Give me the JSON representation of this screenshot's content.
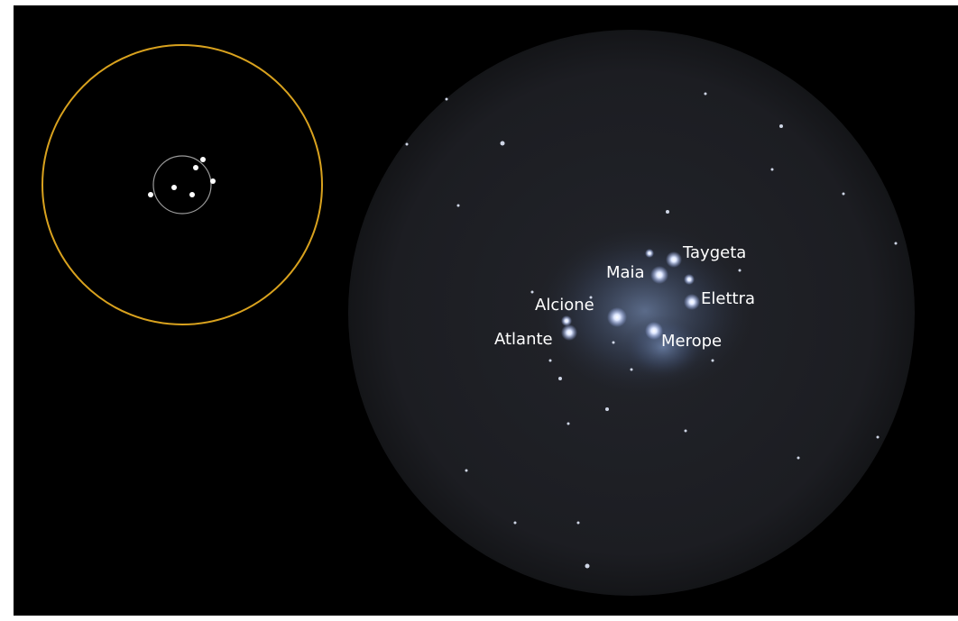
{
  "labels": [
    "Taygeta",
    "Maia",
    "Elettra",
    "Alcione",
    "Atlante",
    "Merope"
  ]
}
